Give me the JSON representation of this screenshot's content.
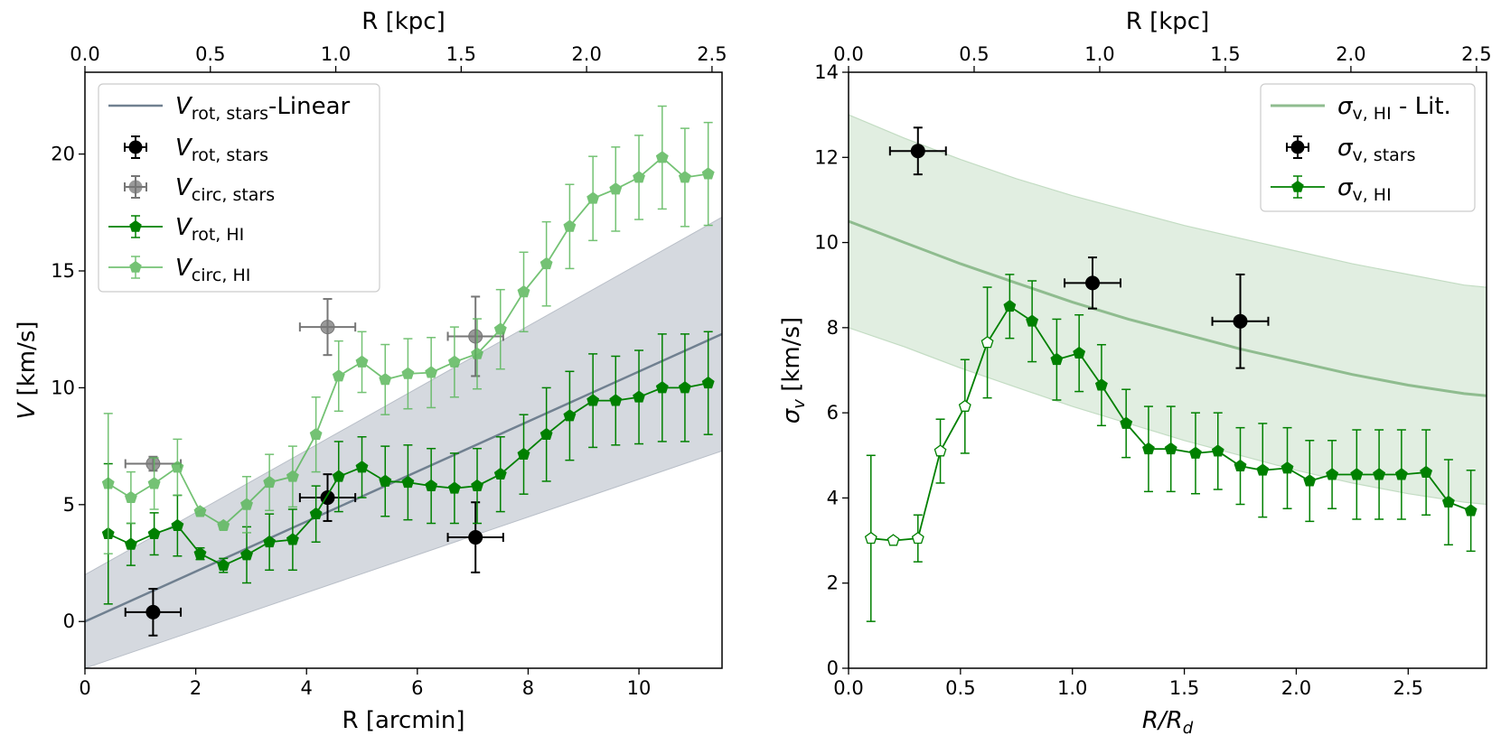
{
  "colors": {
    "rot_stars": "#000000",
    "circ_stars": "#555555",
    "rot_hi": "#008000",
    "circ_hi": "#5cb85c",
    "linear": "#708090",
    "linear_band": "#d5d9df",
    "lit": "#8fbc8f",
    "lit_band": "#e1eee1"
  },
  "chart_data": [
    {
      "type": "line",
      "xlabel": "R [arcmin]",
      "ylabel": "V [km/s]",
      "top_xlabel": "R [kpc]",
      "xlim": [
        0,
        11.5
      ],
      "ylim": [
        -2,
        23.5
      ],
      "top_xlim": [
        0,
        2.54
      ],
      "xticks": [
        "0",
        "2",
        "4",
        "6",
        "8",
        "10"
      ],
      "yticks": [
        "0",
        "5",
        "10",
        "15",
        "20"
      ],
      "top_xticks": [
        "0.0",
        "0.5",
        "1.0",
        "1.5",
        "2.0",
        "2.5"
      ],
      "legend": {
        "position": "upper-left",
        "entries": [
          {
            "main": "V",
            "sub": "rot, stars",
            "suffix": "-Linear"
          },
          {
            "main": "V",
            "sub": "rot, stars",
            "suffix": ""
          },
          {
            "main": "V",
            "sub": "circ, stars",
            "suffix": ""
          },
          {
            "main": "V",
            "sub": "rot, HI",
            "suffix": ""
          },
          {
            "main": "V",
            "sub": "circ, HI",
            "suffix": ""
          }
        ]
      },
      "series": [
        {
          "name": "V_rot,stars-Linear",
          "kind": "line_band",
          "line": [
            [
              0,
              0
            ],
            [
              11.5,
              12.3
            ]
          ],
          "band_upper": [
            [
              0,
              2.0
            ],
            [
              11.5,
              17.3
            ]
          ],
          "band_lower": [
            [
              0,
              -2.0
            ],
            [
              11.5,
              7.3
            ]
          ]
        },
        {
          "name": "V_rot,stars",
          "kind": "errorbar",
          "points": [
            {
              "x": 1.23,
              "y": 0.4,
              "xerr": 0.5,
              "yerr": 1.0
            },
            {
              "x": 4.38,
              "y": 5.3,
              "xerr": 0.5,
              "yerr": 1.0
            },
            {
              "x": 7.05,
              "y": 3.6,
              "xerr": 0.5,
              "yerr": 1.5
            }
          ]
        },
        {
          "name": "V_circ,stars",
          "kind": "errorbar",
          "points": [
            {
              "x": 1.23,
              "y": 6.75,
              "xerr": 0.5,
              "yerr": 0.3
            },
            {
              "x": 4.38,
              "y": 12.6,
              "xerr": 0.5,
              "yerr": 1.2
            },
            {
              "x": 7.05,
              "y": 12.2,
              "xerr": 0.5,
              "yerr": 1.7
            }
          ]
        },
        {
          "name": "V_rot,HI",
          "kind": "line_errorbar",
          "x": [
            0.42,
            0.83,
            1.25,
            1.67,
            2.08,
            2.5,
            2.92,
            3.33,
            3.75,
            4.17,
            4.58,
            5.0,
            5.42,
            5.83,
            6.25,
            6.67,
            7.08,
            7.5,
            7.92,
            8.33,
            8.75,
            9.17,
            9.58,
            10.0,
            10.42,
            10.83,
            11.25
          ],
          "y": [
            3.75,
            3.3,
            3.75,
            4.1,
            2.9,
            2.4,
            2.85,
            3.4,
            3.5,
            4.6,
            6.2,
            6.6,
            6.0,
            5.95,
            5.8,
            5.7,
            5.8,
            6.3,
            7.15,
            8.0,
            8.8,
            9.45,
            9.45,
            9.6,
            10.0,
            10.0,
            10.2
          ],
          "yerr": [
            3.0,
            0.9,
            0.9,
            1.3,
            0.25,
            0.3,
            1.2,
            1.2,
            1.3,
            1.2,
            1.5,
            1.3,
            1.5,
            1.6,
            1.6,
            1.5,
            1.6,
            1.6,
            1.7,
            2.0,
            1.9,
            2.0,
            1.9,
            2.0,
            2.3,
            2.3,
            2.2
          ]
        },
        {
          "name": "V_circ,HI",
          "kind": "line_errorbar",
          "x": [
            0.42,
            0.83,
            1.25,
            1.67,
            2.08,
            2.5,
            2.92,
            3.33,
            3.75,
            4.17,
            4.58,
            5.0,
            5.42,
            5.83,
            6.25,
            6.67,
            7.08,
            7.5,
            7.92,
            8.33,
            8.75,
            9.17,
            9.58,
            10.0,
            10.42,
            10.83,
            11.25
          ],
          "y": [
            5.9,
            5.3,
            5.9,
            6.6,
            4.7,
            4.1,
            5.0,
            5.95,
            6.2,
            8.0,
            10.5,
            11.1,
            10.35,
            10.6,
            10.65,
            11.1,
            11.45,
            12.5,
            14.1,
            15.3,
            16.9,
            18.1,
            18.5,
            19.0,
            19.85,
            19.0,
            19.15
          ],
          "yerr": [
            3.0,
            1.1,
            1.1,
            1.2,
            0.15,
            0.15,
            1.2,
            1.2,
            1.3,
            1.6,
            1.5,
            1.3,
            1.5,
            1.5,
            1.5,
            1.5,
            1.5,
            1.7,
            1.7,
            1.8,
            1.8,
            1.8,
            1.8,
            1.8,
            2.2,
            2.1,
            2.2
          ]
        }
      ]
    },
    {
      "type": "line",
      "xlabel": "R/R_d",
      "ylabel": "σ_v [km/s]",
      "top_xlabel": "R [kpc]",
      "xlim": [
        0,
        2.85
      ],
      "ylim": [
        0,
        14
      ],
      "top_xlim": [
        0,
        2.54
      ],
      "xticks": [
        "0.0",
        "0.5",
        "1.0",
        "1.5",
        "2.0",
        "2.5"
      ],
      "yticks": [
        "0",
        "2",
        "4",
        "6",
        "8",
        "10",
        "12",
        "14"
      ],
      "top_xticks": [
        "0.0",
        "0.5",
        "1.0",
        "1.5",
        "2.0",
        "2.5"
      ],
      "legend": {
        "position": "upper-right",
        "entries": [
          {
            "main": "σ",
            "sub": "v, HI",
            "suffix": " - Lit."
          },
          {
            "main": "σ",
            "sub": "v, stars",
            "suffix": ""
          },
          {
            "main": "σ",
            "sub": "v, HI",
            "suffix": ""
          }
        ]
      },
      "series": [
        {
          "name": "σ_v,HI - Lit.",
          "kind": "curve_band",
          "x": [
            0,
            0.25,
            0.5,
            0.75,
            1.0,
            1.25,
            1.5,
            1.75,
            2.0,
            2.25,
            2.5,
            2.75,
            2.85
          ],
          "y": [
            10.5,
            10.0,
            9.5,
            9.05,
            8.6,
            8.2,
            7.85,
            7.5,
            7.2,
            6.9,
            6.65,
            6.45,
            6.4
          ],
          "y_upper": [
            13.0,
            12.45,
            11.95,
            11.5,
            11.1,
            10.75,
            10.4,
            10.1,
            9.8,
            9.5,
            9.25,
            9.0,
            8.95
          ],
          "y_lower": [
            8.0,
            7.55,
            7.05,
            6.6,
            6.15,
            5.75,
            5.35,
            5.0,
            4.65,
            4.35,
            4.1,
            3.9,
            3.85
          ]
        },
        {
          "name": "σ_v,stars",
          "kind": "errorbar",
          "points": [
            {
              "x": 0.31,
              "y": 12.15,
              "xerr": 0.125,
              "yerr": 0.55
            },
            {
              "x": 1.09,
              "y": 9.05,
              "xerr": 0.125,
              "yerr": 0.6
            },
            {
              "x": 1.75,
              "y": 8.15,
              "xerr": 0.125,
              "yerr": 1.1
            }
          ]
        },
        {
          "name": "σ_v,HI",
          "kind": "line_errorbar",
          "x": [
            0.1,
            0.2,
            0.31,
            0.41,
            0.52,
            0.62,
            0.72,
            0.82,
            0.93,
            1.03,
            1.13,
            1.24,
            1.34,
            1.44,
            1.55,
            1.65,
            1.75,
            1.85,
            1.96,
            2.06,
            2.16,
            2.27,
            2.37,
            2.47,
            2.58,
            2.68,
            2.78
          ],
          "y": [
            3.05,
            3.0,
            3.05,
            5.1,
            6.15,
            7.65,
            8.5,
            8.15,
            7.25,
            7.4,
            6.65,
            5.75,
            5.15,
            5.15,
            5.05,
            5.1,
            4.75,
            4.65,
            4.7,
            4.4,
            4.55,
            4.55,
            4.55,
            4.55,
            4.6,
            3.9,
            3.7
          ],
          "yerr": [
            1.95,
            0.05,
            0.55,
            0.75,
            1.1,
            1.3,
            0.75,
            0.95,
            0.95,
            0.9,
            0.95,
            0.8,
            1.0,
            1.0,
            0.95,
            0.9,
            0.9,
            1.1,
            0.95,
            0.95,
            0.8,
            1.05,
            1.05,
            1.05,
            1.0,
            1.0,
            0.95
          ],
          "open_markers": [
            0,
            1,
            2,
            3,
            4,
            5
          ]
        }
      ]
    }
  ]
}
